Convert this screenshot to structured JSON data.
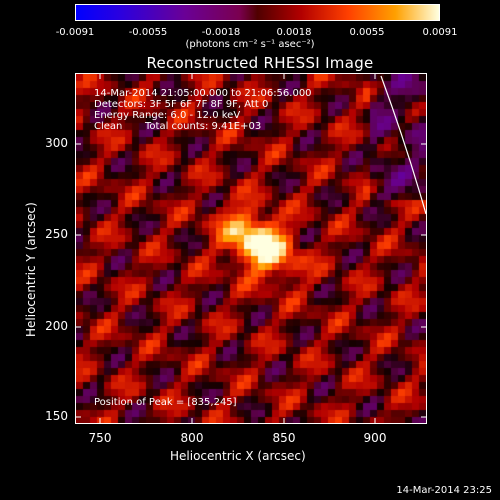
{
  "colorbar": {
    "ticks": [
      "-0.0091",
      "-0.0055",
      "-0.0018",
      "0.0018",
      "0.0055",
      "0.0091"
    ],
    "units": "(photons cm⁻² s⁻¹ asec⁻²)",
    "range": [
      -0.0091,
      0.0091
    ]
  },
  "chart_data": {
    "type": "heatmap",
    "title": "Reconstructed RHESSI Image",
    "xlabel": "Heliocentric X (arcsec)",
    "ylabel": "Heliocentric Y (arcsec)",
    "xlim": [
      737,
      928
    ],
    "ylim": [
      145,
      336
    ],
    "x_ticks": [
      "750",
      "800",
      "850",
      "900"
    ],
    "y_ticks": [
      "150",
      "200",
      "250",
      "300"
    ],
    "peak": {
      "x": 835,
      "y": 245
    },
    "annotations": {
      "time": "14-Mar-2014 21:05:00.000 to 21:06:56.000",
      "detectors": "Detectors: 3F 5F 6F 7F 8F 9F, Att 0",
      "energy": "Energy Range: 6.0 - 12.0 keV",
      "clean": "Clean",
      "counts": "Total counts: 9.41E+03",
      "peak_label": "Position of Peak = [835,245]"
    }
  },
  "timestamp": "14-Mar-2014 23:25"
}
